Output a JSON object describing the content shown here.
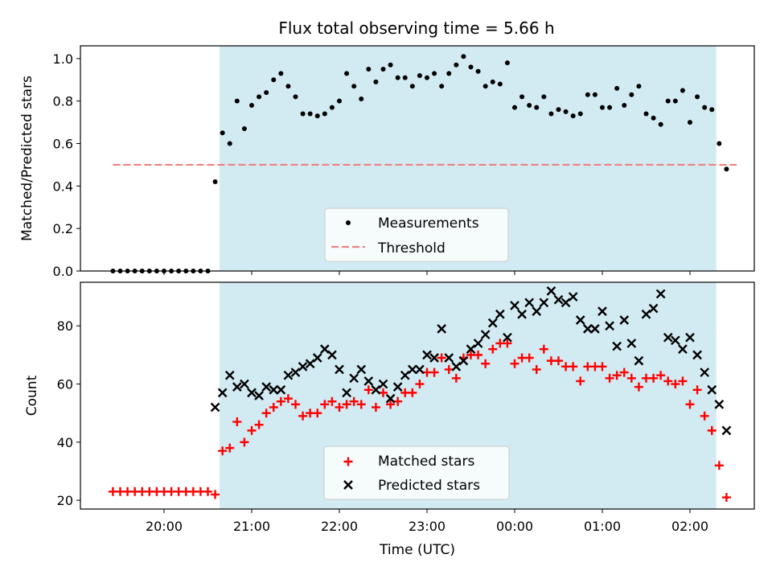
{
  "title": "Flux total observing time = 5.66 h",
  "colors": {
    "span": "#add8e6",
    "threshold": "#f08080",
    "matched": "#ff0000",
    "predicted": "#000000",
    "measurement": "#000000"
  },
  "chart_data": [
    {
      "type": "scatter",
      "ylabel": "Matched/Predicted stars",
      "xlabel": "",
      "ylim": [
        0,
        1.06
      ],
      "yticks": [
        "0.0",
        "0.2",
        "0.4",
        "0.6",
        "0.8",
        "1.0"
      ],
      "ytick_values": [
        0,
        0.2,
        0.4,
        0.6,
        0.8,
        1.0
      ],
      "x_unit": "time UTC",
      "shaded_span": [
        "20:38",
        "02:18"
      ],
      "legend_position": "lower center",
      "threshold": {
        "name": "Threshold",
        "value": 0.5,
        "x_range": [
          "19:25",
          "02:32"
        ]
      },
      "series": [
        {
          "name": "Measurements",
          "x": [
            "19:25",
            "19:30",
            "19:35",
            "19:40",
            "19:45",
            "19:50",
            "19:55",
            "20:00",
            "20:05",
            "20:10",
            "20:15",
            "20:20",
            "20:25",
            "20:30",
            "20:35",
            "20:40",
            "20:45",
            "20:50",
            "20:55",
            "21:00",
            "21:05",
            "21:10",
            "21:15",
            "21:20",
            "21:25",
            "21:30",
            "21:35",
            "21:40",
            "21:45",
            "21:50",
            "21:55",
            "22:00",
            "22:05",
            "22:10",
            "22:15",
            "22:20",
            "22:25",
            "22:30",
            "22:35",
            "22:40",
            "22:45",
            "22:50",
            "22:55",
            "23:00",
            "23:05",
            "23:10",
            "23:15",
            "23:20",
            "23:25",
            "23:30",
            "23:35",
            "23:40",
            "23:45",
            "23:50",
            "23:55",
            "00:00",
            "00:05",
            "00:10",
            "00:15",
            "00:20",
            "00:25",
            "00:30",
            "00:35",
            "00:40",
            "00:45",
            "00:50",
            "00:55",
            "01:00",
            "01:05",
            "01:10",
            "01:15",
            "01:20",
            "01:25",
            "01:30",
            "01:35",
            "01:40",
            "01:45",
            "01:50",
            "01:55",
            "02:00",
            "02:05",
            "02:10",
            "02:15",
            "02:20",
            "02:25"
          ],
          "y": [
            0,
            0,
            0,
            0,
            0,
            0,
            0,
            0,
            0,
            0,
            0,
            0,
            0,
            0,
            0.42,
            0.65,
            0.6,
            0.8,
            0.67,
            0.78,
            0.82,
            0.84,
            0.9,
            0.93,
            0.87,
            0.82,
            0.74,
            0.74,
            0.73,
            0.74,
            0.77,
            0.8,
            0.93,
            0.87,
            0.81,
            0.95,
            0.89,
            0.95,
            0.97,
            0.91,
            0.91,
            0.87,
            0.92,
            0.91,
            0.93,
            0.87,
            0.93,
            0.97,
            1.01,
            0.96,
            0.94,
            0.87,
            0.89,
            0.88,
            0.98,
            0.77,
            0.82,
            0.78,
            0.77,
            0.82,
            0.74,
            0.76,
            0.75,
            0.73,
            0.74,
            0.83,
            0.83,
            0.77,
            0.77,
            0.86,
            0.78,
            0.83,
            0.87,
            0.74,
            0.72,
            0.69,
            0.8,
            0.8,
            0.85,
            0.7,
            0.82,
            0.77,
            0.76,
            0.6,
            0.48
          ]
        }
      ]
    },
    {
      "type": "scatter",
      "ylabel": "Count",
      "xlabel": "Time (UTC)",
      "ylim": [
        17,
        95
      ],
      "yticks": [
        "20",
        "40",
        "60",
        "80"
      ],
      "ytick_values": [
        20,
        40,
        60,
        80
      ],
      "xticks": [
        "20:00",
        "21:00",
        "22:00",
        "23:00",
        "00:00",
        "01:00",
        "02:00"
      ],
      "shaded_span": [
        "20:38",
        "02:18"
      ],
      "legend_position": "lower center",
      "series": [
        {
          "name": "Matched stars",
          "x": [
            "19:25",
            "19:30",
            "19:35",
            "19:40",
            "19:45",
            "19:50",
            "19:55",
            "20:00",
            "20:05",
            "20:10",
            "20:15",
            "20:20",
            "20:25",
            "20:30",
            "20:35",
            "20:40",
            "20:45",
            "20:50",
            "20:55",
            "21:00",
            "21:05",
            "21:10",
            "21:15",
            "21:20",
            "21:25",
            "21:30",
            "21:35",
            "21:40",
            "21:45",
            "21:50",
            "21:55",
            "22:00",
            "22:05",
            "22:10",
            "22:15",
            "22:20",
            "22:25",
            "22:30",
            "22:35",
            "22:40",
            "22:45",
            "22:50",
            "22:55",
            "23:00",
            "23:05",
            "23:10",
            "23:15",
            "23:20",
            "23:25",
            "23:30",
            "23:35",
            "23:40",
            "23:45",
            "23:50",
            "23:55",
            "00:00",
            "00:05",
            "00:10",
            "00:15",
            "00:20",
            "00:25",
            "00:30",
            "00:35",
            "00:40",
            "00:45",
            "00:50",
            "00:55",
            "01:00",
            "01:05",
            "01:10",
            "01:15",
            "01:20",
            "01:25",
            "01:30",
            "01:35",
            "01:40",
            "01:45",
            "01:50",
            "01:55",
            "02:00",
            "02:05",
            "02:10",
            "02:15",
            "02:20",
            "02:25"
          ],
          "y": [
            23,
            23,
            23,
            23,
            23,
            23,
            23,
            23,
            23,
            23,
            23,
            23,
            23,
            23,
            22,
            37,
            38,
            47,
            40,
            44,
            46,
            50,
            52,
            54,
            55,
            53,
            49,
            50,
            50,
            53,
            54,
            52,
            53,
            54,
            53,
            58,
            52,
            57,
            53,
            54,
            57,
            57,
            60,
            64,
            64,
            69,
            65,
            62,
            69,
            70,
            70,
            67,
            72,
            74,
            74,
            67,
            69,
            69,
            65,
            72,
            68,
            68,
            66,
            66,
            61,
            66,
            66,
            66,
            62,
            63,
            64,
            62,
            59,
            62,
            62,
            63,
            61,
            60,
            61,
            53,
            58,
            49,
            44,
            32,
            21
          ]
        },
        {
          "name": "Predicted stars",
          "x": [
            "20:35",
            "20:40",
            "20:45",
            "20:50",
            "20:55",
            "21:00",
            "21:05",
            "21:10",
            "21:15",
            "21:20",
            "21:25",
            "21:30",
            "21:35",
            "21:40",
            "21:45",
            "21:50",
            "21:55",
            "22:00",
            "22:05",
            "22:10",
            "22:15",
            "22:20",
            "22:25",
            "22:30",
            "22:35",
            "22:40",
            "22:45",
            "22:50",
            "22:55",
            "23:00",
            "23:05",
            "23:10",
            "23:15",
            "23:20",
            "23:25",
            "23:30",
            "23:35",
            "23:40",
            "23:45",
            "23:50",
            "23:55",
            "00:00",
            "00:05",
            "00:10",
            "00:15",
            "00:20",
            "00:25",
            "00:30",
            "00:35",
            "00:40",
            "00:45",
            "00:50",
            "00:55",
            "01:00",
            "01:05",
            "01:10",
            "01:15",
            "01:20",
            "01:25",
            "01:30",
            "01:35",
            "01:40",
            "01:45",
            "01:50",
            "01:55",
            "02:00",
            "02:05",
            "02:10",
            "02:15",
            "02:20",
            "02:25"
          ],
          "y": [
            52,
            57,
            63,
            59,
            60,
            57,
            56,
            59,
            58,
            58,
            63,
            64,
            66,
            67,
            69,
            72,
            70,
            65,
            57,
            62,
            65,
            61,
            58,
            60,
            55,
            59,
            63,
            65,
            65,
            70,
            69,
            79,
            69,
            66,
            68,
            72,
            74,
            77,
            81,
            84,
            76,
            87,
            84,
            88,
            85,
            88,
            92,
            89,
            88,
            90,
            82,
            79,
            79,
            85,
            80,
            73,
            82,
            74,
            68,
            84,
            86,
            91,
            76,
            75,
            72,
            76,
            70,
            64,
            58,
            53,
            44
          ]
        }
      ]
    }
  ]
}
